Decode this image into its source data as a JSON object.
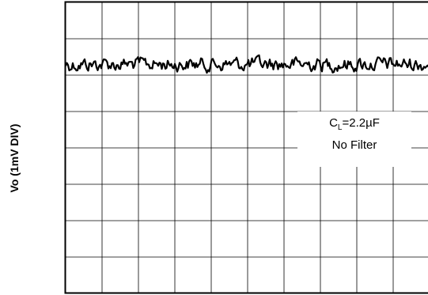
{
  "chart_data": {
    "type": "line",
    "ylabel": "Vo (1mV DIV)",
    "xlabel": "",
    "title": "",
    "grid": true,
    "grid_divisions": {
      "x": 10,
      "y": 8
    },
    "trace_level_div": 6.3,
    "noise_peak_to_peak_div": 0.35,
    "annotation": {
      "prefix": "C",
      "subscript": "L",
      "value": "=2.2µF",
      "line2": "No Filter"
    }
  }
}
